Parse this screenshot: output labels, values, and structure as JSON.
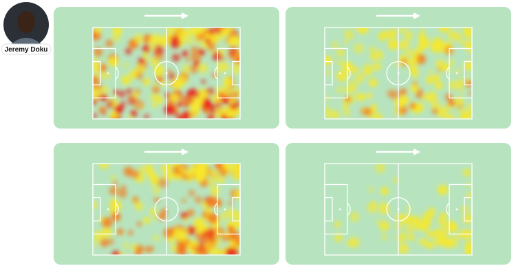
{
  "player": {
    "name": "Jeremy Doku"
  }
}
